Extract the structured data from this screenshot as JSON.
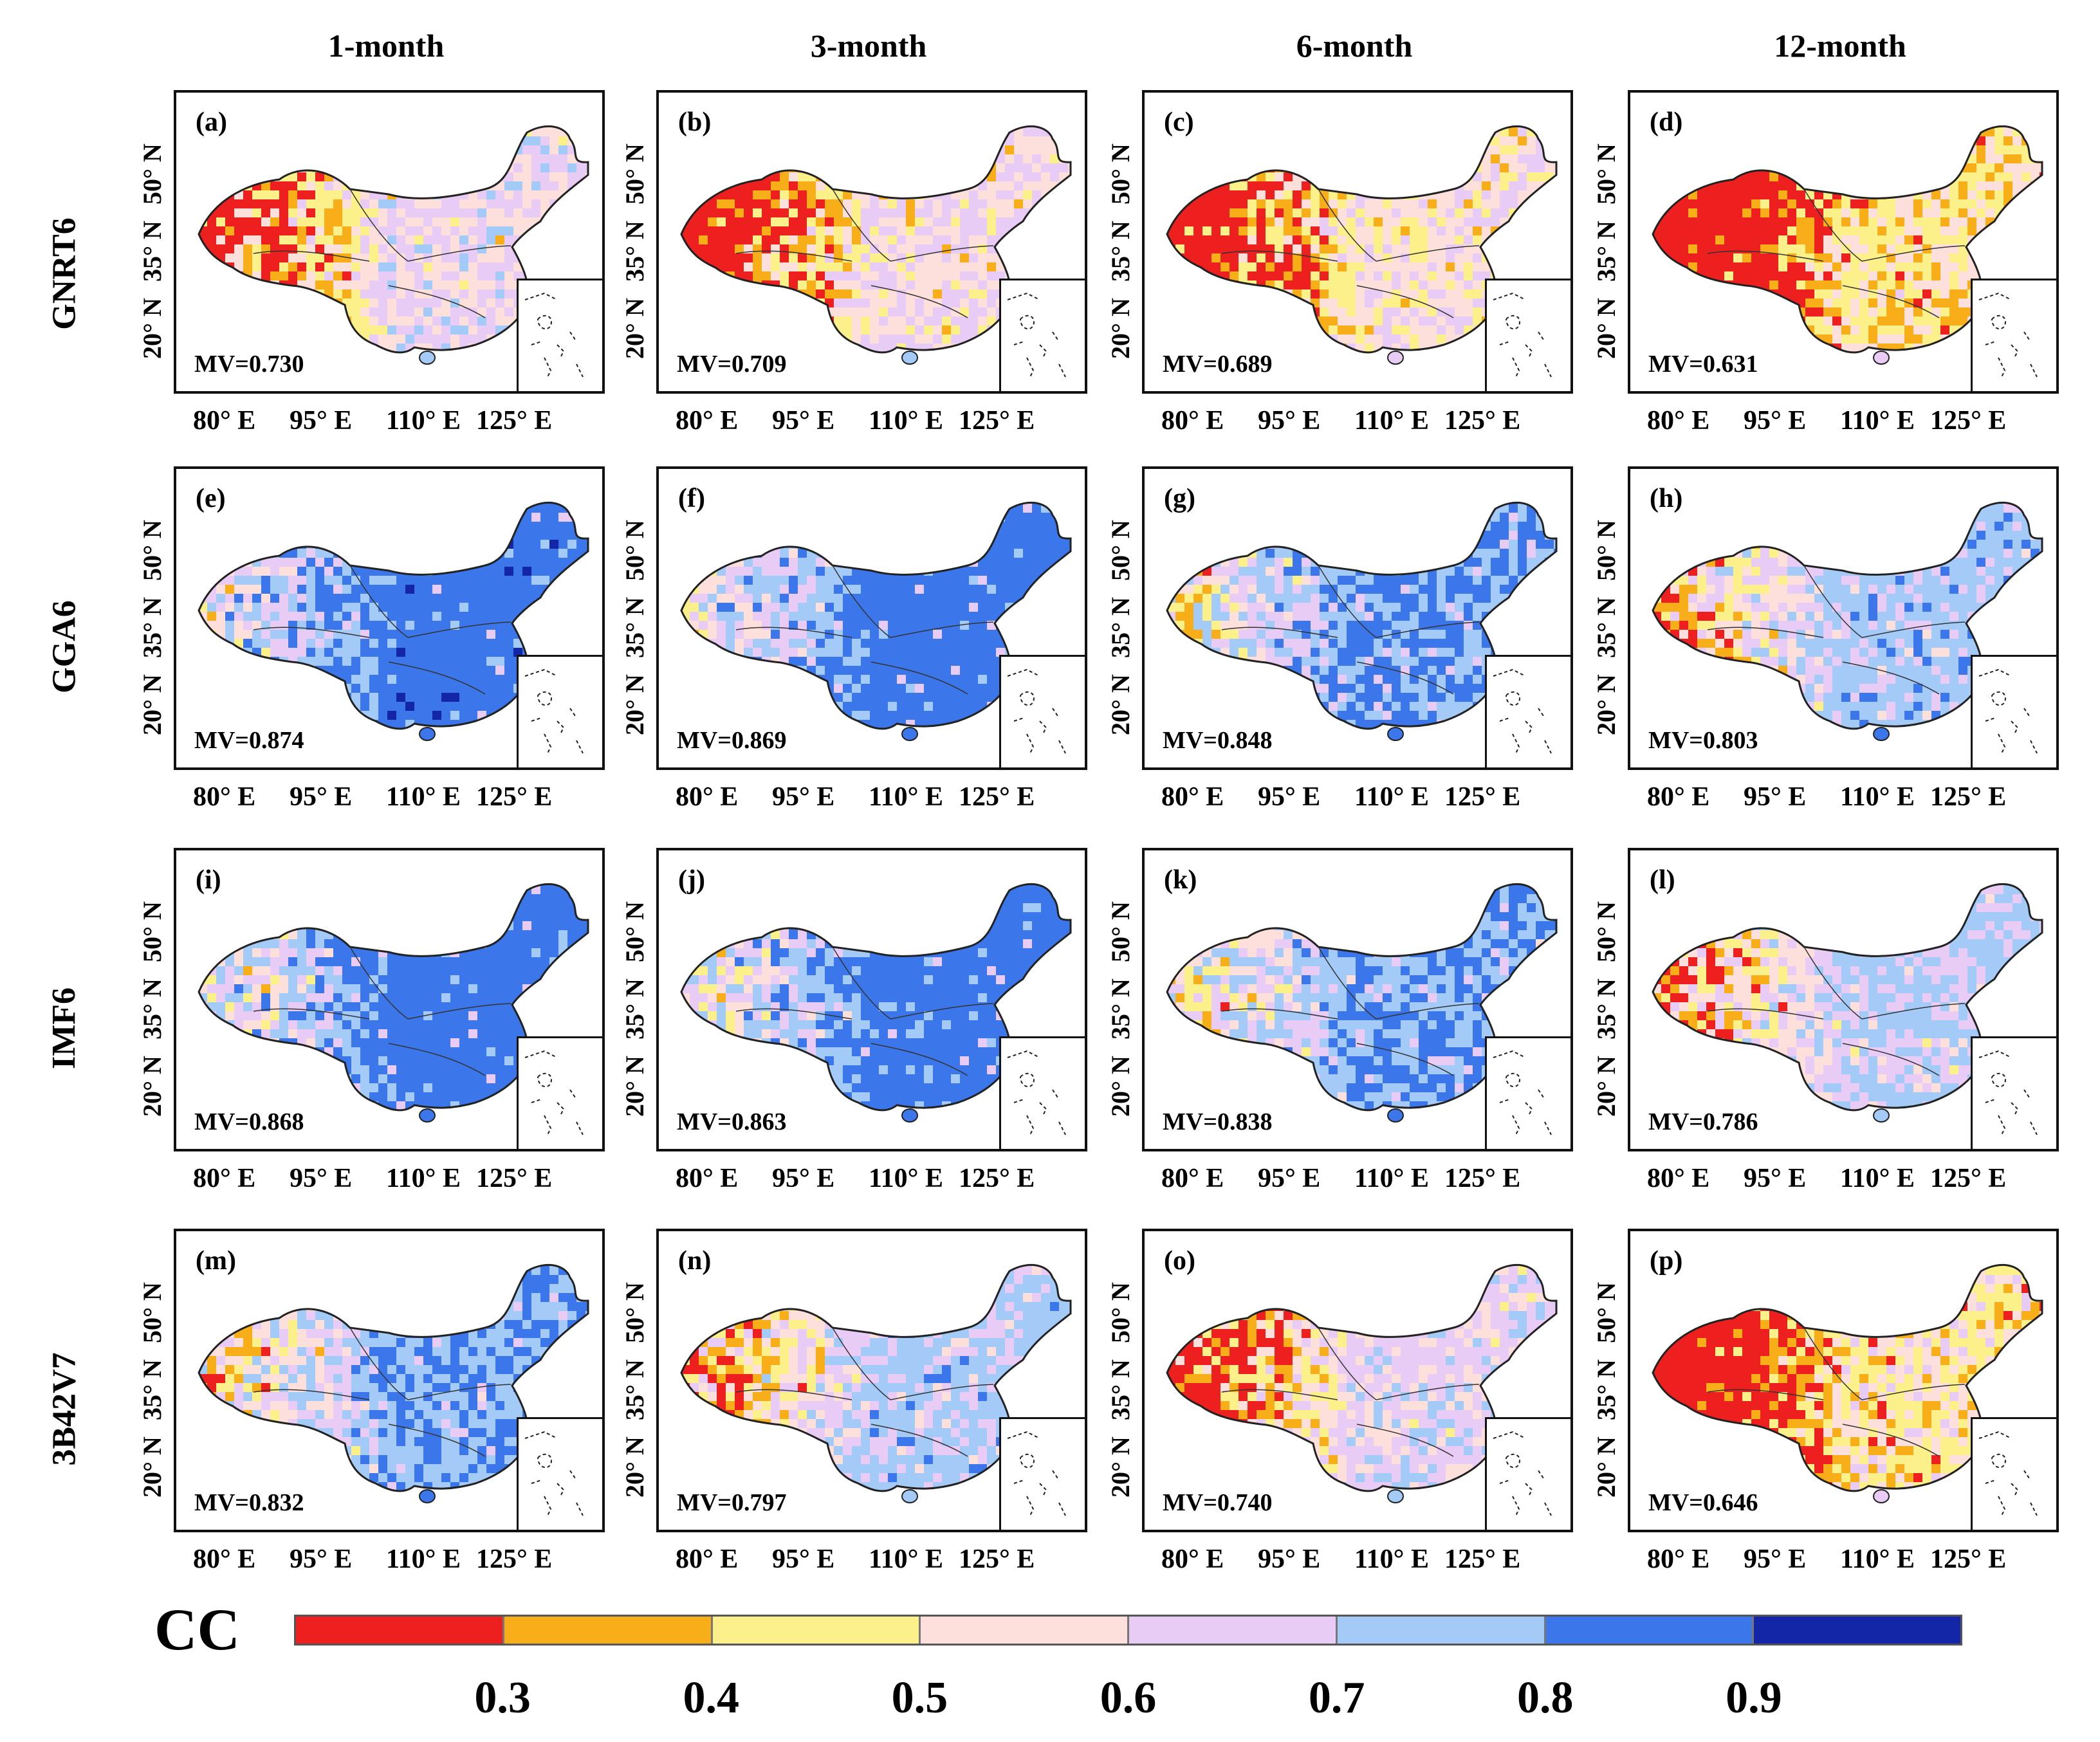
{
  "chart_data": {
    "type": "map-grid",
    "metric": "CC",
    "column_titles": [
      "1-month",
      "3-month",
      "6-month",
      "12-month"
    ],
    "row_titles": [
      "GNRT6",
      "GGA6",
      "IMF6",
      "3B42V7"
    ],
    "y_ticks": [
      "20° N",
      "35° N",
      "50° N"
    ],
    "x_ticks": [
      "80° E",
      "95° E",
      "110° E",
      "125° E"
    ],
    "panels": [
      {
        "label": "(a)",
        "mv_text": "MV=0.730",
        "mv": 0.73
      },
      {
        "label": "(b)",
        "mv_text": "MV=0.709",
        "mv": 0.709
      },
      {
        "label": "(c)",
        "mv_text": "MV=0.689",
        "mv": 0.689
      },
      {
        "label": "(d)",
        "mv_text": "MV=0.631",
        "mv": 0.631
      },
      {
        "label": "(e)",
        "mv_text": "MV=0.874",
        "mv": 0.874
      },
      {
        "label": "(f)",
        "mv_text": "MV=0.869",
        "mv": 0.869
      },
      {
        "label": "(g)",
        "mv_text": "MV=0.848",
        "mv": 0.848
      },
      {
        "label": "(h)",
        "mv_text": "MV=0.803",
        "mv": 0.803
      },
      {
        "label": "(i)",
        "mv_text": "MV=0.868",
        "mv": 0.868
      },
      {
        "label": "(j)",
        "mv_text": "MV=0.863",
        "mv": 0.863
      },
      {
        "label": "(k)",
        "mv_text": "MV=0.838",
        "mv": 0.838
      },
      {
        "label": "(l)",
        "mv_text": "MV=0.786",
        "mv": 0.786
      },
      {
        "label": "(m)",
        "mv_text": "MV=0.832",
        "mv": 0.832
      },
      {
        "label": "(n)",
        "mv_text": "MV=0.797",
        "mv": 0.797
      },
      {
        "label": "(o)",
        "mv_text": "MV=0.740",
        "mv": 0.74
      },
      {
        "label": "(p)",
        "mv_text": "MV=0.646",
        "mv": 0.646
      }
    ],
    "colorbar": {
      "label": "CC",
      "ticks": [
        "0.3",
        "0.4",
        "0.5",
        "0.6",
        "0.7",
        "0.8",
        "0.9"
      ],
      "colors": [
        "#ee1f1f",
        "#f8ae18",
        "#fbf08a",
        "#fde0dc",
        "#e8ccf5",
        "#a4cbf8",
        "#3b77ea",
        "#1426a8"
      ]
    }
  }
}
